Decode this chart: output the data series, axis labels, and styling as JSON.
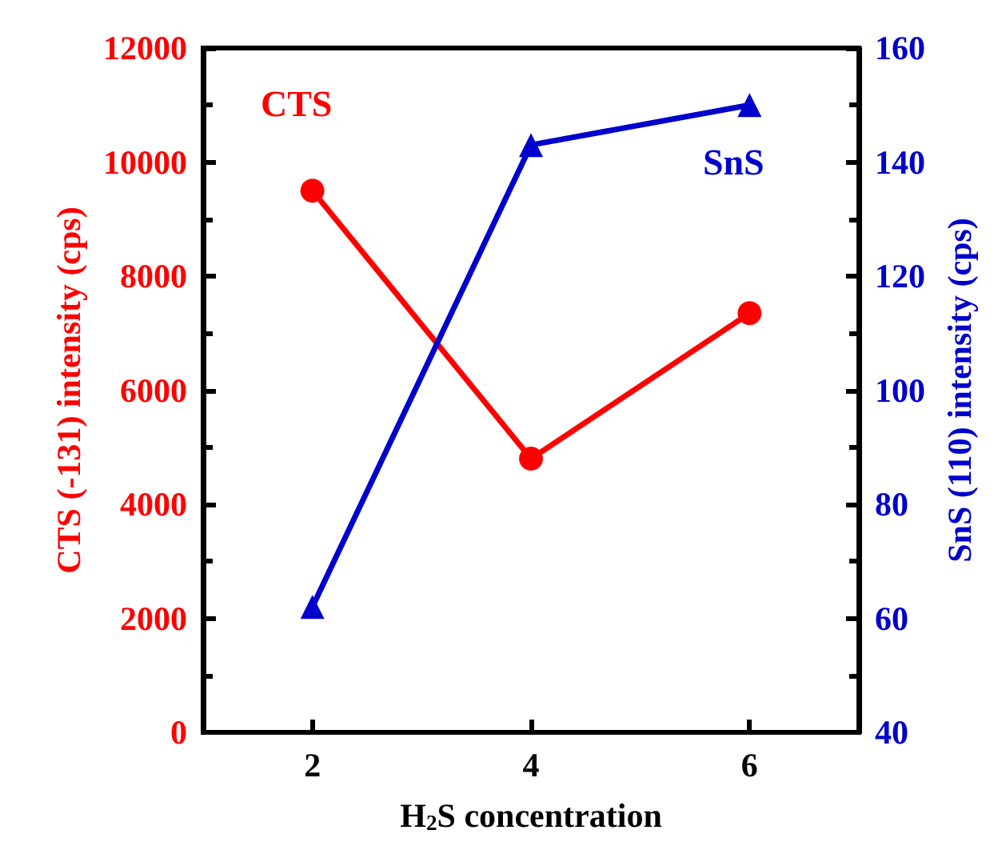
{
  "chart_data": {
    "type": "line",
    "xlabel": "H$_{2}$S concentration",
    "ylabel": "CTS (-131) intensity (cps)",
    "y2label": "SnS (110) intensity (cps)",
    "x": [
      2,
      4,
      6
    ],
    "xlim": [
      1,
      7
    ],
    "xticks": [
      2,
      4,
      6
    ],
    "ylim": [
      0,
      12000
    ],
    "yticks": [
      0,
      2000,
      4000,
      6000,
      8000,
      10000,
      12000
    ],
    "y2lim": [
      40,
      160
    ],
    "y2ticks": [
      40,
      60,
      80,
      100,
      120,
      140,
      160
    ],
    "series": [
      {
        "name": "CTS",
        "color": "#ff0000",
        "values": [
          9500,
          4800,
          7350
        ],
        "marker": "circle"
      },
      {
        "name": "SnS",
        "color": "#0000cc",
        "values": [
          62,
          143,
          150
        ],
        "axis": "y2",
        "marker": "triangle"
      }
    ],
    "grid": false,
    "legend": false,
    "line_style": "solid"
  }
}
